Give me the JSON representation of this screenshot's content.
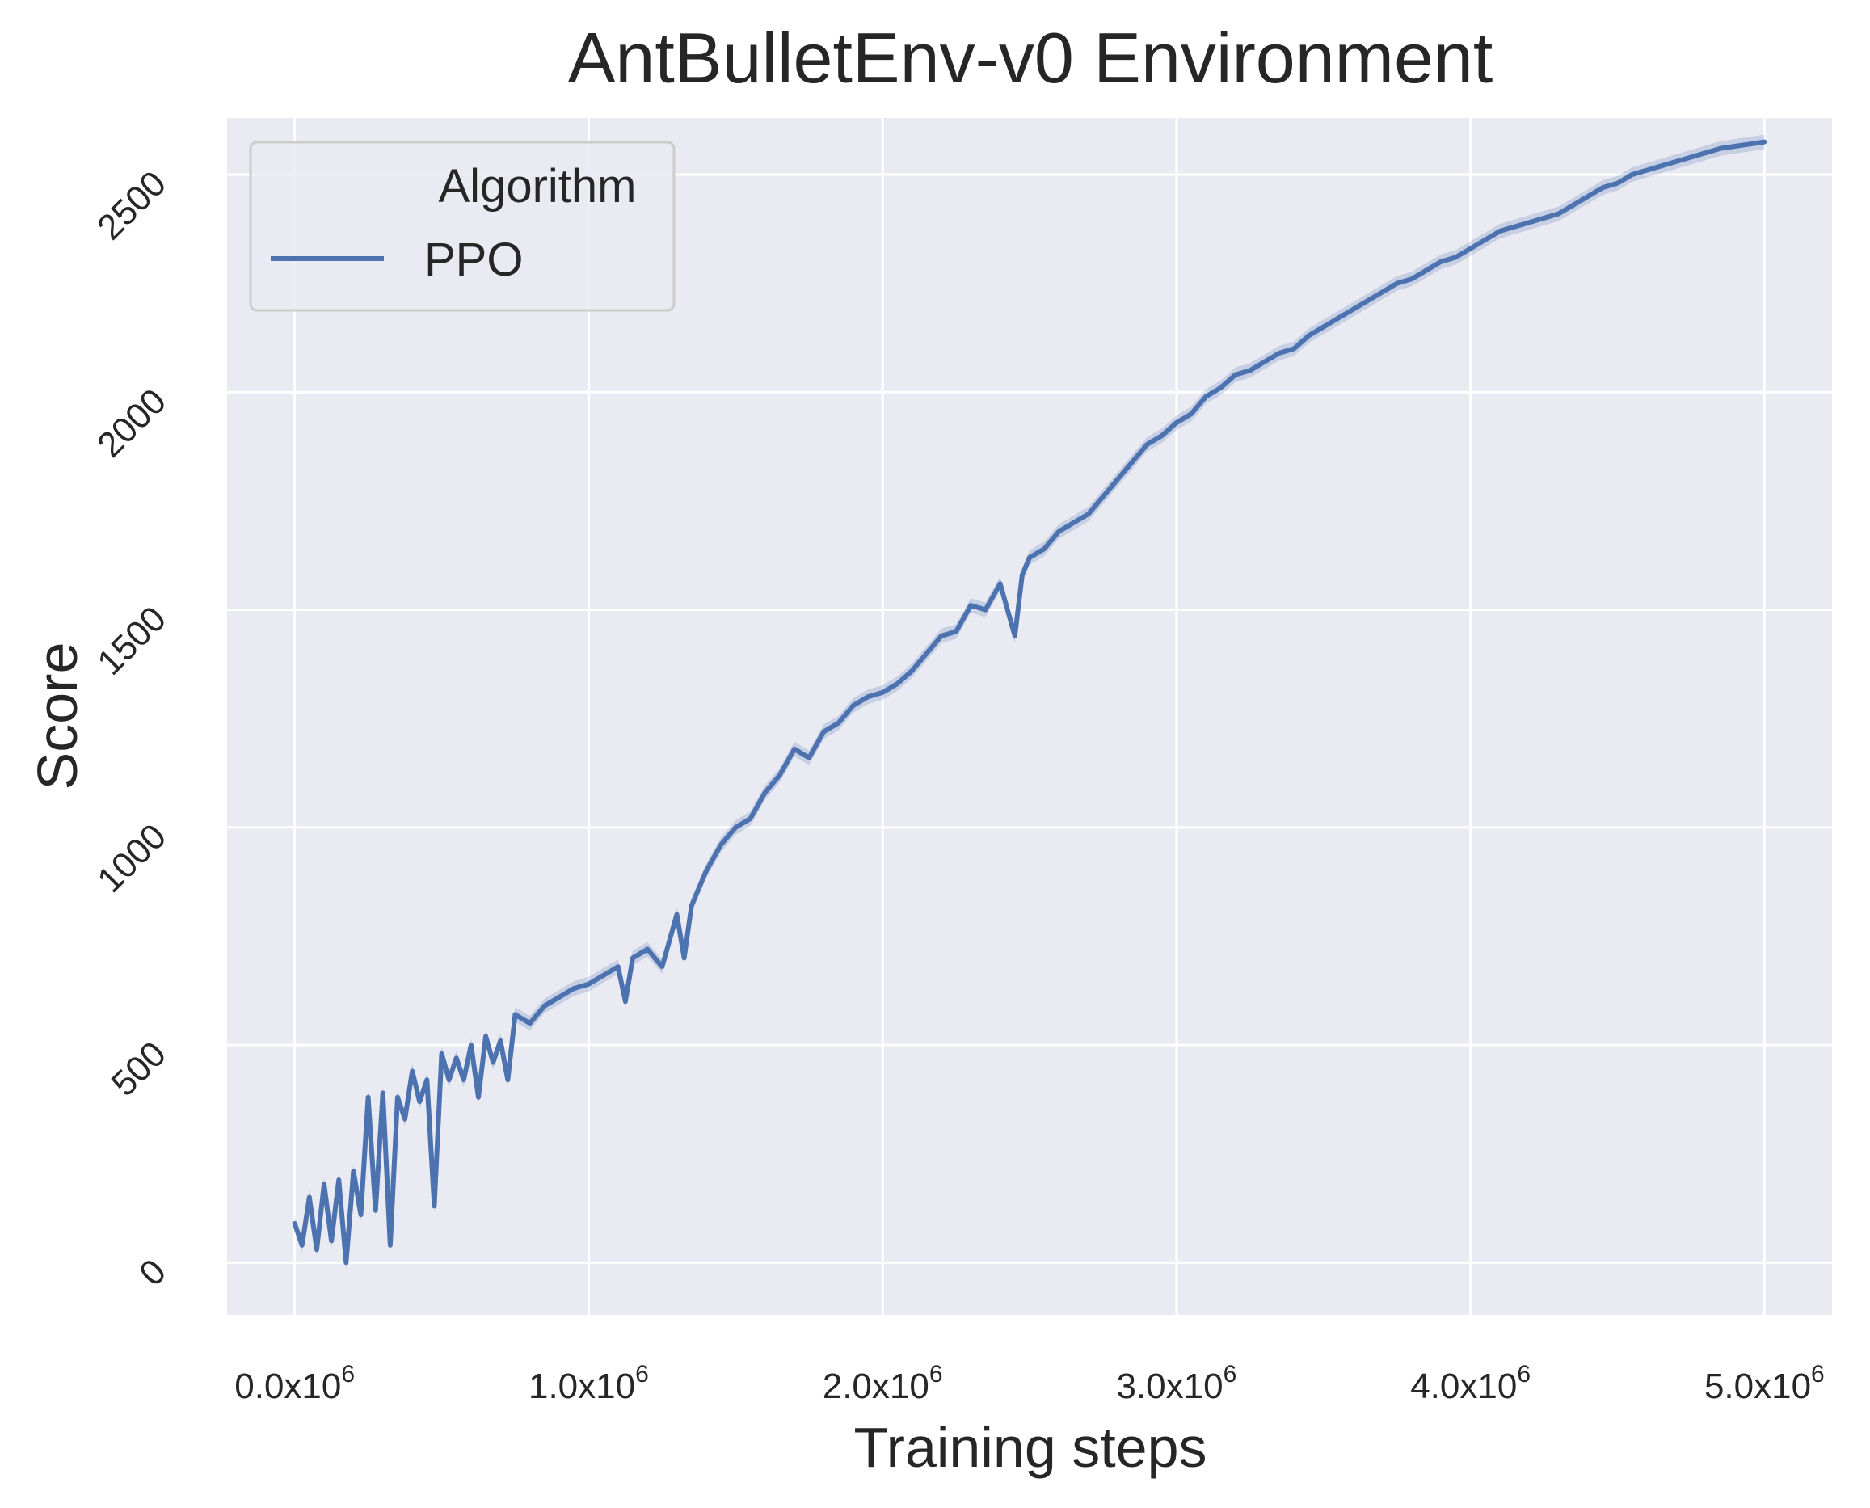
{
  "chart_data": {
    "type": "line",
    "title": "AntBulletEnv-v0 Environment",
    "xlabel": "Training steps",
    "ylabel": "Score",
    "xlim": [
      -230000,
      5230000
    ],
    "ylim": [
      -120,
      2630
    ],
    "x_ticks": [
      {
        "value": 0,
        "mantissa": "0.0x10",
        "exp": "6"
      },
      {
        "value": 1000000,
        "mantissa": "1.0x10",
        "exp": "6"
      },
      {
        "value": 2000000,
        "mantissa": "2.0x10",
        "exp": "6"
      },
      {
        "value": 3000000,
        "mantissa": "3.0x10",
        "exp": "6"
      },
      {
        "value": 4000000,
        "mantissa": "4.0x10",
        "exp": "6"
      },
      {
        "value": 5000000,
        "mantissa": "5.0x10",
        "exp": "6"
      }
    ],
    "y_ticks": [
      {
        "value": 0,
        "label": "0"
      },
      {
        "value": 500,
        "label": "500"
      },
      {
        "value": 1000,
        "label": "1000"
      },
      {
        "value": 1500,
        "label": "1500"
      },
      {
        "value": 2000,
        "label": "2000"
      },
      {
        "value": 2500,
        "label": "2500"
      }
    ],
    "grid": true,
    "background": "#eaeaf2",
    "grid_color": "#ffffff",
    "legend": {
      "title": "Algorithm",
      "placement": "top-left"
    },
    "series": [
      {
        "name": "PPO",
        "color": "#4c72b0",
        "band_color": "#4c72b0",
        "x": [
          0,
          25000,
          50000,
          75000,
          100000,
          125000,
          150000,
          175000,
          200000,
          225000,
          250000,
          275000,
          300000,
          325000,
          350000,
          375000,
          400000,
          425000,
          450000,
          475000,
          500000,
          525000,
          550000,
          575000,
          600000,
          625000,
          650000,
          675000,
          700000,
          725000,
          750000,
          800000,
          850000,
          900000,
          950000,
          1000000,
          1050000,
          1100000,
          1125000,
          1150000,
          1200000,
          1250000,
          1300000,
          1325000,
          1350000,
          1400000,
          1450000,
          1500000,
          1550000,
          1600000,
          1650000,
          1700000,
          1750000,
          1800000,
          1850000,
          1900000,
          1950000,
          2000000,
          2050000,
          2100000,
          2150000,
          2200000,
          2250000,
          2300000,
          2350000,
          2400000,
          2450000,
          2475000,
          2500000,
          2550000,
          2600000,
          2650000,
          2700000,
          2750000,
          2800000,
          2850000,
          2900000,
          2950000,
          3000000,
          3050000,
          3100000,
          3150000,
          3200000,
          3250000,
          3300000,
          3350000,
          3400000,
          3450000,
          3500000,
          3550000,
          3600000,
          3650000,
          3700000,
          3750000,
          3800000,
          3850000,
          3900000,
          3950000,
          4000000,
          4050000,
          4100000,
          4150000,
          4200000,
          4250000,
          4300000,
          4350000,
          4400000,
          4450000,
          4500000,
          4550000,
          4600000,
          4650000,
          4700000,
          4750000,
          4800000,
          4850000,
          4900000,
          4950000,
          5000000
        ],
        "y": [
          90,
          40,
          150,
          30,
          180,
          50,
          190,
          0,
          210,
          110,
          380,
          120,
          390,
          40,
          380,
          330,
          440,
          370,
          420,
          130,
          480,
          420,
          470,
          420,
          500,
          380,
          520,
          460,
          510,
          420,
          570,
          550,
          590,
          610,
          630,
          640,
          660,
          680,
          600,
          700,
          720,
          680,
          800,
          700,
          820,
          900,
          960,
          1000,
          1020,
          1080,
          1120,
          1180,
          1160,
          1220,
          1240,
          1280,
          1300,
          1310,
          1330,
          1360,
          1400,
          1440,
          1450,
          1510,
          1500,
          1560,
          1440,
          1580,
          1620,
          1640,
          1680,
          1700,
          1720,
          1760,
          1800,
          1840,
          1880,
          1900,
          1930,
          1950,
          1990,
          2010,
          2040,
          2050,
          2070,
          2090,
          2100,
          2130,
          2150,
          2170,
          2190,
          2210,
          2230,
          2250,
          2260,
          2280,
          2300,
          2310,
          2330,
          2350,
          2370,
          2380,
          2390,
          2400,
          2410,
          2430,
          2450,
          2470,
          2480,
          2500,
          2510,
          2520,
          2530,
          2540,
          2550,
          2560,
          2565,
          2570,
          2575
        ]
      }
    ]
  }
}
